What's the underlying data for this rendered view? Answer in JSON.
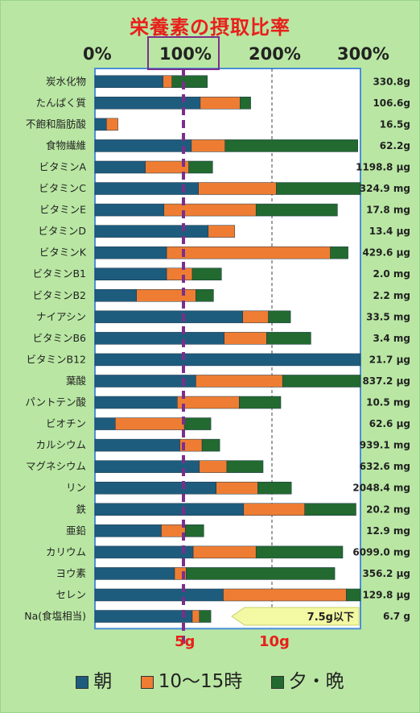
{
  "title": "栄養素の摂取比率",
  "percent_ticks": [
    "0%",
    "100%",
    "200%",
    "300%"
  ],
  "salt_ticks": [
    "5g",
    "10g"
  ],
  "legend": [
    {
      "label": "朝",
      "color": "#1e5c7e"
    },
    {
      "label": "10〜15時",
      "color": "#ee7d33"
    },
    {
      "label": "夕・晩",
      "color": "#226a2f"
    }
  ],
  "salt_target": "7.5g以下",
  "chart_data": {
    "type": "bar",
    "stacked": true,
    "orientation": "horizontal",
    "xlim": [
      0,
      300
    ],
    "xlabel_ticks": [
      "0%",
      "100%",
      "200%",
      "300%"
    ],
    "reference_line": 100,
    "categories": [
      "炭水化物",
      "たんぱく質",
      "不飽和脂肪酸",
      "食物繊維",
      "ビタミンA",
      "ビタミンC",
      "ビタミンE",
      "ビタミンD",
      "ビタミンK",
      "ビタミンB1",
      "ビタミンB2",
      "ナイアシン",
      "ビタミンB6",
      "ビタミンB12",
      "葉酸",
      "パントテン酸",
      "ビオチン",
      "カルシウム",
      "マグネシウム",
      "リン",
      "鉄",
      "亜鉛",
      "カリウム",
      "ヨウ素",
      "セレン",
      "Na(食塩相当)"
    ],
    "value_labels": [
      "330.8g",
      "106.6g",
      "16.5g",
      "62.2g",
      "1198.8 μg",
      "324.9 mg",
      "17.8 mg",
      "13.4 μg",
      "429.6 μg",
      "2.0 mg",
      "2.2 mg",
      "33.5 mg",
      "3.4 mg",
      "21.7 μg",
      "837.2 μg",
      "10.5 mg",
      "62.6 μg",
      "939.1 mg",
      "632.6 mg",
      "2048.4 mg",
      "20.2 mg",
      "12.9 mg",
      "6099.0 mg",
      "356.2 μg",
      "129.8 μg",
      "6.7 g"
    ],
    "series": [
      {
        "name": "朝",
        "color": "#1e5c7e",
        "values": [
          77,
          119,
          13,
          109,
          57,
          117,
          78,
          128,
          81,
          81,
          47,
          167,
          146,
          300,
          114,
          93,
          23,
          96,
          118,
          137,
          168,
          75,
          111,
          90,
          145,
          110
        ]
      },
      {
        "name": "10〜15時",
        "color": "#ee7d33",
        "values": [
          10,
          45,
          13,
          38,
          49,
          88,
          104,
          30,
          185,
          29,
          67,
          29,
          48,
          0,
          98,
          70,
          78,
          25,
          31,
          47,
          69,
          27,
          71,
          13,
          139,
          8
        ]
      },
      {
        "name": "夕・晩",
        "color": "#226a2f",
        "values": [
          40,
          12,
          0,
          150,
          27,
          95,
          92,
          0,
          20,
          33,
          20,
          25,
          50,
          0,
          90,
          47,
          30,
          20,
          41,
          38,
          58,
          21,
          98,
          168,
          17,
          13
        ]
      }
    ]
  }
}
